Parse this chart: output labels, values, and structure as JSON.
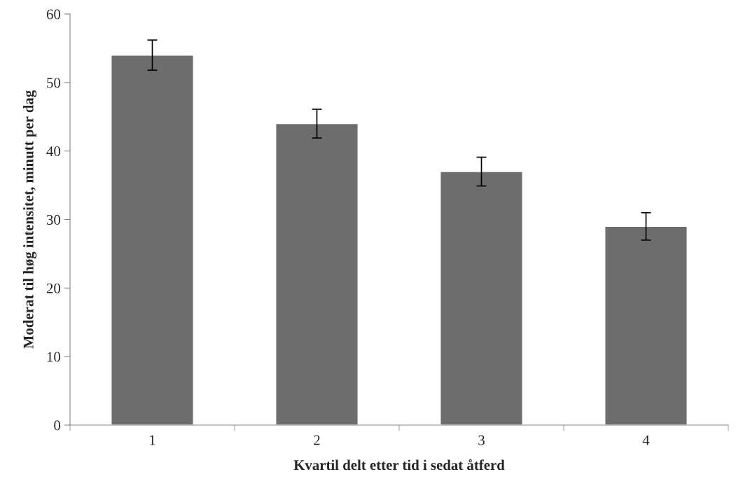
{
  "chart_data": {
    "type": "bar",
    "xlabel": "Kvartil delt etter tid i sedat åtferd",
    "ylabel": "Moderat til høg intensitet, minutt per dag",
    "categories": [
      "1",
      "2",
      "3",
      "4"
    ],
    "values": [
      54,
      44,
      37,
      29
    ],
    "errors": [
      2.2,
      2.1,
      2.1,
      2.0
    ],
    "color": "#6d6d6d",
    "ylim": [
      0,
      60
    ],
    "yticks": [
      0,
      10,
      20,
      30,
      40,
      50,
      60
    ],
    "grid": false,
    "legend": false
  }
}
